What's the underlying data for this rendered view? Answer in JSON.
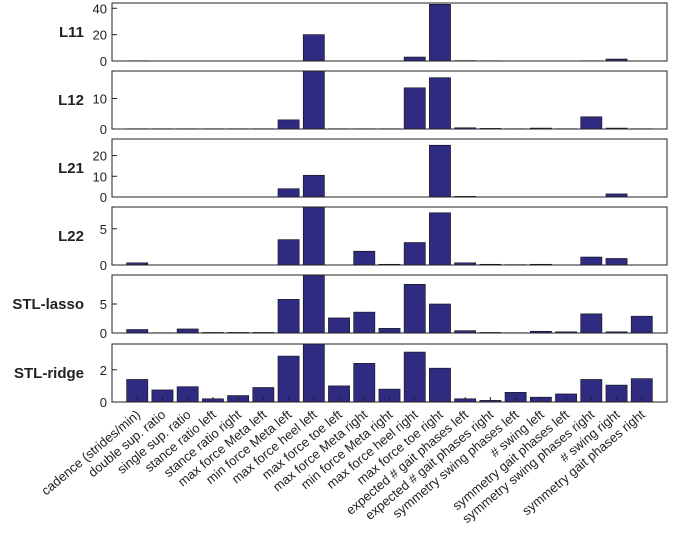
{
  "chart_data": [
    {
      "type": "bar",
      "title": "L11",
      "color": "#2f2b80",
      "ylim": [
        0,
        44
      ],
      "yticks": [
        0,
        20,
        40
      ],
      "values": [
        0.2,
        0.1,
        0.1,
        0.1,
        0.1,
        0.1,
        0.1,
        20,
        0.1,
        0.1,
        0.1,
        3,
        43,
        0.3,
        0.2,
        0.1,
        0.1,
        0.1,
        0.2,
        1.5,
        0.1
      ]
    },
    {
      "type": "bar",
      "title": "L12",
      "color": "#2f2b80",
      "ylim": [
        0,
        19
      ],
      "yticks": [
        0,
        10
      ],
      "values": [
        0.1,
        0.1,
        0.1,
        0.1,
        0.1,
        0.1,
        3,
        19,
        0.1,
        0.1,
        0.1,
        13.5,
        16.8,
        0.4,
        0.2,
        0.1,
        0.3,
        0.1,
        4,
        0.3,
        0.1
      ]
    },
    {
      "type": "bar",
      "title": "L21",
      "color": "#2f2b80",
      "ylim": [
        0,
        28
      ],
      "yticks": [
        0,
        10,
        20
      ],
      "values": [
        0.1,
        0.1,
        0.1,
        0.1,
        0.1,
        0.1,
        4,
        10.5,
        0.1,
        0.1,
        0.1,
        0.1,
        25,
        0.3,
        0.1,
        0.1,
        0.1,
        0.1,
        0.1,
        1.5,
        0.1
      ]
    },
    {
      "type": "bar",
      "title": "L22",
      "color": "#2f2b80",
      "ylim": [
        0,
        8
      ],
      "yticks": [
        0,
        5
      ],
      "values": [
        0.3,
        0.02,
        0.02,
        0.02,
        0.02,
        0.02,
        3.5,
        8,
        0.02,
        1.9,
        0.1,
        3.1,
        7.2,
        0.3,
        0.1,
        0.05,
        0.1,
        0.02,
        1.1,
        0.9,
        0.02
      ]
    },
    {
      "type": "bar",
      "title": "STL-lasso",
      "color": "#2f2b80",
      "ylim": [
        0,
        10
      ],
      "yticks": [
        0,
        5
      ],
      "values": [
        0.6,
        0.05,
        0.7,
        0.1,
        0.1,
        0.1,
        5.8,
        10,
        2.6,
        3.6,
        0.8,
        8.4,
        5.0,
        0.4,
        0.1,
        0.05,
        0.3,
        0.2,
        3.3,
        0.2,
        2.9
      ]
    },
    {
      "type": "bar",
      "title": "STL-ridge",
      "color": "#2f2b80",
      "ylim": [
        0,
        3.6
      ],
      "yticks": [
        0,
        2
      ],
      "values": [
        1.4,
        0.75,
        0.95,
        0.2,
        0.4,
        0.9,
        2.85,
        3.6,
        1.0,
        2.4,
        0.8,
        3.1,
        2.1,
        0.2,
        0.1,
        0.6,
        0.3,
        0.5,
        1.4,
        1.05,
        1.45
      ],
      "categories": [
        "cadence (strides/min)",
        "double sup. ratio",
        "single sup. ratio",
        "stance ratio left",
        "stance ratio right",
        "max force Meta left",
        "min force Meta left",
        "max force heel left",
        "max force toe left",
        "max force Meta right",
        "min force Meta right",
        "max force heel right",
        "max force toe right",
        "expected # gait phases left",
        "expected # gait phases right",
        "symmetry swing phases left",
        "# swing left",
        "symmetry gait phases left",
        "symmetry swing phases right",
        "# swing right",
        "symmetry gait phases right"
      ]
    }
  ]
}
